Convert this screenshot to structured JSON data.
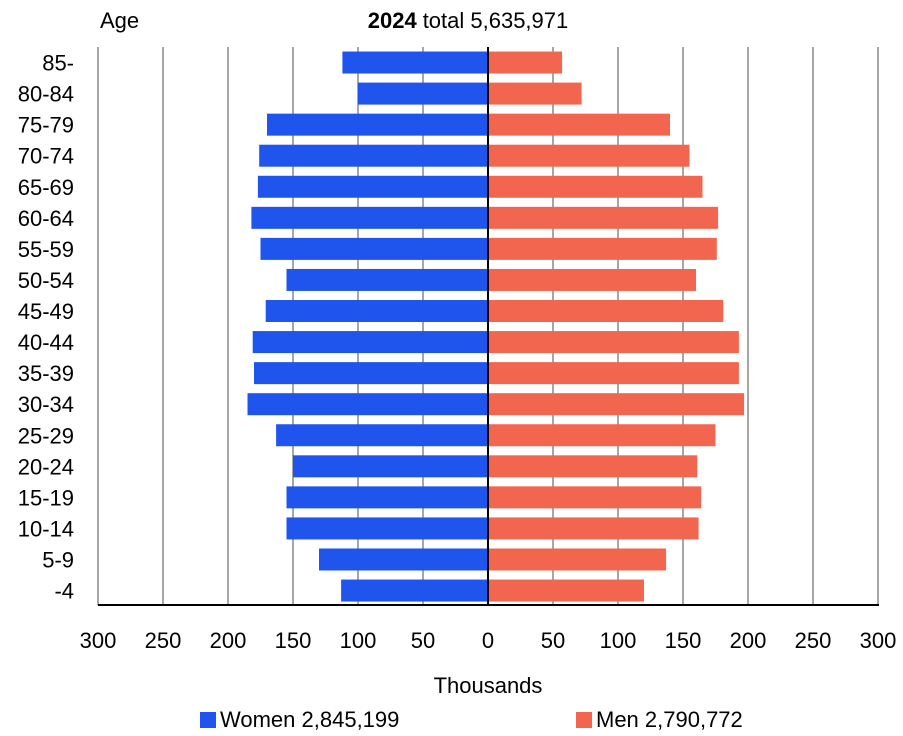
{
  "chart_data": {
    "type": "bar",
    "orientation": "horizontal-pyramid",
    "title_year": "2024",
    "title_rest": "total 5,635,971",
    "ylabel": "Age",
    "xlabel": "Thousands",
    "xlim": [
      -300,
      300
    ],
    "x_ticks": [
      "300",
      "250",
      "200",
      "150",
      "100",
      "50",
      "0",
      "50",
      "100",
      "150",
      "200",
      "250",
      "300"
    ],
    "categories": [
      "85-",
      "80-84",
      "75-79",
      "70-74",
      "65-69",
      "60-64",
      "55-59",
      "50-54",
      "45-49",
      "40-44",
      "35-39",
      "30-34",
      "25-29",
      "20-24",
      "15-19",
      "10-14",
      "5-9",
      "-4"
    ],
    "grid": "vertical",
    "legend_placement": "bottom",
    "series": [
      {
        "name": "Women 2,845,199",
        "side": "left",
        "color": "#1f55ec",
        "values": [
          112,
          100,
          170,
          176,
          177,
          182,
          175,
          155,
          171,
          181,
          180,
          185,
          163,
          150,
          155,
          155,
          130,
          113
        ]
      },
      {
        "name": "Men 2,790,772",
        "side": "right",
        "color": "#f2664f",
        "values": [
          57,
          72,
          140,
          155,
          165,
          177,
          176,
          160,
          181,
          193,
          193,
          197,
          175,
          161,
          164,
          162,
          137,
          120
        ]
      }
    ]
  }
}
